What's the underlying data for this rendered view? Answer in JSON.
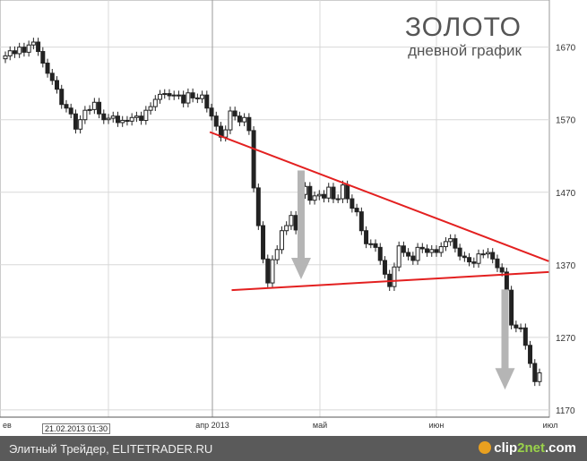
{
  "header": {
    "title": "ЗОЛОТО",
    "subtitle": "дневной график"
  },
  "footer": {
    "source": "Элитный Трейдер, ELITETRADER.RU",
    "brand_prefix": "clip",
    "brand_accent": "2net",
    "brand_suffix": ".com"
  },
  "cursor_date": "21.02.2013 01:30",
  "chart_data": {
    "type": "candlestick",
    "x_axis": {
      "labels": [
        "ев",
        "апр 2013",
        "май",
        "июн",
        "июл"
      ]
    },
    "y_axis": {
      "ticks": [
        1170,
        1270,
        1370,
        1470,
        1570,
        1670
      ],
      "range": [
        1160,
        1735
      ],
      "position": "right"
    },
    "grid": true,
    "colors": {
      "trendline": "#e32020",
      "arrow": "#b5b5b5",
      "candle": "#222222",
      "grid": "#d8d8d8"
    },
    "closes": [
      1658,
      1665,
      1661,
      1670,
      1663,
      1673,
      1677,
      1664,
      1648,
      1634,
      1624,
      1612,
      1591,
      1586,
      1578,
      1557,
      1570,
      1583,
      1584,
      1594,
      1578,
      1570,
      1572,
      1575,
      1566,
      1569,
      1568,
      1573,
      1575,
      1569,
      1583,
      1588,
      1598,
      1605,
      1606,
      1603,
      1604,
      1604,
      1593,
      1607,
      1600,
      1599,
      1604,
      1586,
      1575,
      1561,
      1546,
      1556,
      1582,
      1575,
      1567,
      1573,
      1555,
      1476,
      1424,
      1378,
      1345,
      1377,
      1391,
      1417,
      1424,
      1438,
      1418,
      1467,
      1478,
      1459,
      1465,
      1467,
      1462,
      1477,
      1461,
      1461,
      1480,
      1461,
      1448,
      1443,
      1417,
      1399,
      1399,
      1394,
      1376,
      1357,
      1340,
      1367,
      1396,
      1387,
      1382,
      1376,
      1394,
      1392,
      1387,
      1391,
      1387,
      1395,
      1402,
      1406,
      1393,
      1382,
      1380,
      1374,
      1372,
      1385,
      1385,
      1387,
      1378,
      1366,
      1360,
      1335,
      1287,
      1283,
      1283,
      1259,
      1234,
      1209,
      1221
    ],
    "trendlines": [
      {
        "from": [
          1,
          1553
        ],
        "to": [
          63,
          1375
        ]
      },
      {
        "from": [
          5,
          1335
        ],
        "to": [
          63,
          1360
        ]
      }
    ],
    "arrows": [
      {
        "x": 17.7,
        "from": 1500,
        "to": 1350
      },
      {
        "x": 55.0,
        "from": 1336,
        "to": 1198
      }
    ]
  }
}
